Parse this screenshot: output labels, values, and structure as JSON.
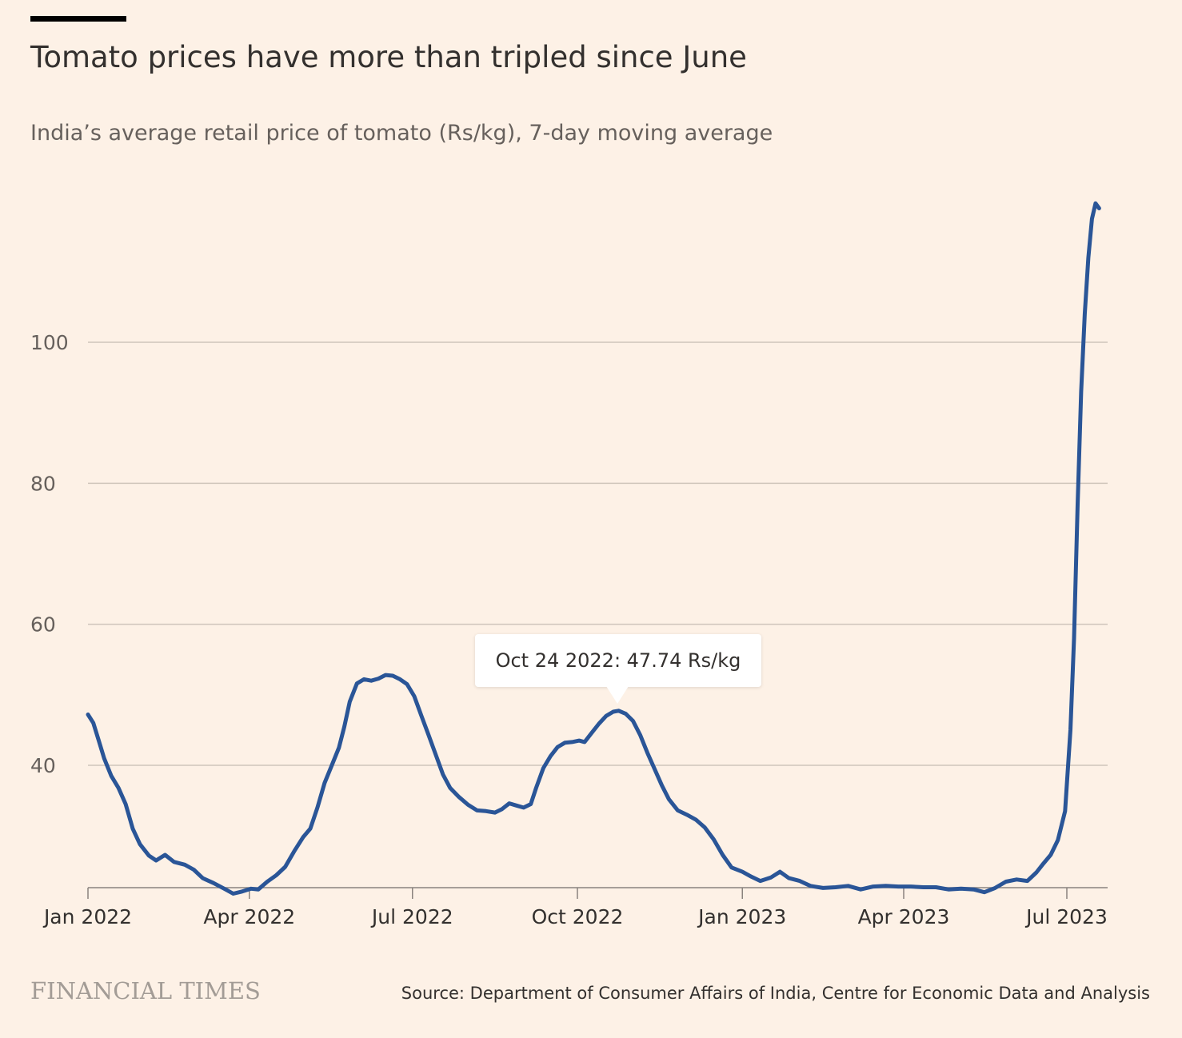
{
  "title": "Tomato prices have more than tripled since June",
  "subtitle": "India’s average retail price of tomato (Rs/kg), 7-day moving average",
  "source": "Source: Department of Consumer Affairs of India, Centre for Economic Data and Analysis",
  "brand": "FINANCIAL TIMES",
  "tooltip": {
    "text": "Oct 24 2022: 47.74 Rs/kg",
    "date": "2022-10-24",
    "value": 47.74
  },
  "colors": {
    "background": "#fdf1e6",
    "line": "#2a5597",
    "grid": "#cfc5bb",
    "brand": "#a39c96"
  },
  "chart_data": {
    "type": "line",
    "title": "Tomato prices have more than tripled since June",
    "subtitle": "India’s average retail price of tomato (Rs/kg), 7-day moving average",
    "xlabel": "",
    "ylabel": "",
    "ylim": [
      19.5,
      122
    ],
    "xlim": [
      "2022-01-01",
      "2023-07-31"
    ],
    "grid": true,
    "yticks": [
      {
        "value": 40,
        "label": "40"
      },
      {
        "value": 60,
        "label": "60"
      },
      {
        "value": 80,
        "label": "80"
      },
      {
        "value": 100,
        "label": "100"
      }
    ],
    "xticks": [
      {
        "date": "2022-01-01",
        "label": "Jan 2022"
      },
      {
        "date": "2022-04-01",
        "label": "Apr 2022"
      },
      {
        "date": "2022-07-01",
        "label": "Jul 2022"
      },
      {
        "date": "2022-10-01",
        "label": "Oct 2022"
      },
      {
        "date": "2023-01-01",
        "label": "Jan 2023"
      },
      {
        "date": "2023-04-01",
        "label": "Apr 2023"
      },
      {
        "date": "2023-07-01",
        "label": "Jul 2023"
      }
    ],
    "series": [
      {
        "values": [
          [
            "2022-01-01",
            47.2
          ],
          [
            "2022-01-04",
            46.0
          ],
          [
            "2022-01-07",
            43.5
          ],
          [
            "2022-01-10",
            41.0
          ],
          [
            "2022-01-14",
            38.5
          ],
          [
            "2022-01-18",
            36.8
          ],
          [
            "2022-01-22",
            34.5
          ],
          [
            "2022-01-26",
            31.0
          ],
          [
            "2022-01-30",
            28.8
          ],
          [
            "2022-02-04",
            27.2
          ],
          [
            "2022-02-08",
            26.5
          ],
          [
            "2022-02-13",
            27.3
          ],
          [
            "2022-02-18",
            26.3
          ],
          [
            "2022-02-24",
            25.9
          ],
          [
            "2022-03-01",
            25.2
          ],
          [
            "2022-03-06",
            24.0
          ],
          [
            "2022-03-12",
            23.3
          ],
          [
            "2022-03-18",
            22.5
          ],
          [
            "2022-03-23",
            21.8
          ],
          [
            "2022-03-28",
            22.1
          ],
          [
            "2022-04-02",
            22.5
          ],
          [
            "2022-04-06",
            22.4
          ],
          [
            "2022-04-11",
            23.5
          ],
          [
            "2022-04-16",
            24.4
          ],
          [
            "2022-04-21",
            25.6
          ],
          [
            "2022-04-26",
            27.8
          ],
          [
            "2022-05-01",
            29.8
          ],
          [
            "2022-05-05",
            31.0
          ],
          [
            "2022-05-09",
            34.0
          ],
          [
            "2022-05-13",
            37.5
          ],
          [
            "2022-05-17",
            40.0
          ],
          [
            "2022-05-21",
            42.5
          ],
          [
            "2022-05-24",
            45.5
          ],
          [
            "2022-05-27",
            49.0
          ],
          [
            "2022-05-31",
            51.6
          ],
          [
            "2022-06-04",
            52.2
          ],
          [
            "2022-06-08",
            52.0
          ],
          [
            "2022-06-12",
            52.3
          ],
          [
            "2022-06-16",
            52.8
          ],
          [
            "2022-06-20",
            52.7
          ],
          [
            "2022-06-24",
            52.2
          ],
          [
            "2022-06-28",
            51.5
          ],
          [
            "2022-07-02",
            49.8
          ],
          [
            "2022-07-06",
            47.0
          ],
          [
            "2022-07-10",
            44.3
          ],
          [
            "2022-07-14",
            41.5
          ],
          [
            "2022-07-18",
            38.7
          ],
          [
            "2022-07-22",
            36.8
          ],
          [
            "2022-07-27",
            35.5
          ],
          [
            "2022-08-01",
            34.4
          ],
          [
            "2022-08-06",
            33.6
          ],
          [
            "2022-08-11",
            33.5
          ],
          [
            "2022-08-16",
            33.3
          ],
          [
            "2022-08-20",
            33.8
          ],
          [
            "2022-08-24",
            34.6
          ],
          [
            "2022-08-28",
            34.3
          ],
          [
            "2022-09-01",
            34.0
          ],
          [
            "2022-09-05",
            34.5
          ],
          [
            "2022-09-08",
            36.8
          ],
          [
            "2022-09-12",
            39.6
          ],
          [
            "2022-09-16",
            41.3
          ],
          [
            "2022-09-20",
            42.6
          ],
          [
            "2022-09-24",
            43.2
          ],
          [
            "2022-09-28",
            43.3
          ],
          [
            "2022-10-02",
            43.5
          ],
          [
            "2022-10-05",
            43.3
          ],
          [
            "2022-10-09",
            44.6
          ],
          [
            "2022-10-13",
            45.9
          ],
          [
            "2022-10-17",
            47.0
          ],
          [
            "2022-10-21",
            47.6
          ],
          [
            "2022-10-24",
            47.74
          ],
          [
            "2022-10-28",
            47.3
          ],
          [
            "2022-11-01",
            46.3
          ],
          [
            "2022-11-05",
            44.3
          ],
          [
            "2022-11-09",
            41.8
          ],
          [
            "2022-11-13",
            39.5
          ],
          [
            "2022-11-17",
            37.2
          ],
          [
            "2022-11-21",
            35.2
          ],
          [
            "2022-11-26",
            33.6
          ],
          [
            "2022-12-01",
            33.0
          ],
          [
            "2022-12-06",
            32.3
          ],
          [
            "2022-12-11",
            31.2
          ],
          [
            "2022-12-16",
            29.5
          ],
          [
            "2022-12-21",
            27.3
          ],
          [
            "2022-12-26",
            25.5
          ],
          [
            "2023-01-01",
            24.9
          ],
          [
            "2023-01-06",
            24.2
          ],
          [
            "2023-01-11",
            23.6
          ],
          [
            "2023-01-17",
            24.1
          ],
          [
            "2023-01-22",
            24.9
          ],
          [
            "2023-01-27",
            24.0
          ],
          [
            "2023-02-02",
            23.6
          ],
          [
            "2023-02-08",
            22.9
          ],
          [
            "2023-02-15",
            22.6
          ],
          [
            "2023-02-22",
            22.7
          ],
          [
            "2023-03-01",
            22.9
          ],
          [
            "2023-03-08",
            22.4
          ],
          [
            "2023-03-15",
            22.8
          ],
          [
            "2023-03-22",
            22.9
          ],
          [
            "2023-03-29",
            22.8
          ],
          [
            "2023-04-05",
            22.8
          ],
          [
            "2023-04-12",
            22.7
          ],
          [
            "2023-04-19",
            22.7
          ],
          [
            "2023-04-26",
            22.4
          ],
          [
            "2023-05-03",
            22.5
          ],
          [
            "2023-05-10",
            22.4
          ],
          [
            "2023-05-16",
            22.0
          ],
          [
            "2023-05-22",
            22.6
          ],
          [
            "2023-05-28",
            23.5
          ],
          [
            "2023-06-03",
            23.8
          ],
          [
            "2023-06-09",
            23.6
          ],
          [
            "2023-06-14",
            24.8
          ],
          [
            "2023-06-18",
            26.1
          ],
          [
            "2023-06-22",
            27.3
          ],
          [
            "2023-06-26",
            29.4
          ],
          [
            "2023-06-30",
            33.5
          ],
          [
            "2023-07-03",
            45.0
          ],
          [
            "2023-07-05",
            58.0
          ],
          [
            "2023-07-07",
            77.0
          ],
          [
            "2023-07-09",
            93.0
          ],
          [
            "2023-07-11",
            104.0
          ],
          [
            "2023-07-13",
            112.0
          ],
          [
            "2023-07-15",
            117.5
          ],
          [
            "2023-07-17",
            119.7
          ],
          [
            "2023-07-19",
            119.0
          ]
        ]
      }
    ]
  }
}
